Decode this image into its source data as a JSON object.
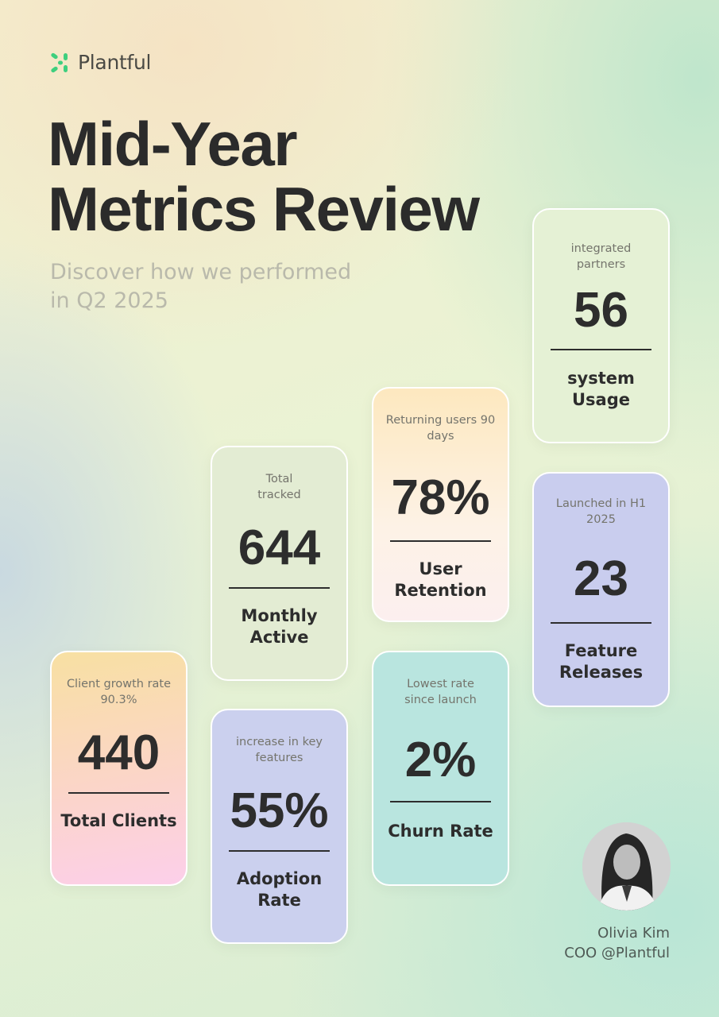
{
  "brand": {
    "name": "Plantful",
    "accent": "#3ecf7e"
  },
  "header": {
    "title_line1": "Mid-Year",
    "title_line2": "Metrics Review",
    "subtitle_line1": "Discover how we performed",
    "subtitle_line2": "in Q2 2025"
  },
  "cards": [
    {
      "caption": "Client growth rate 90.3%",
      "value": "440",
      "label": "Total Clients"
    },
    {
      "caption": "Total tracked",
      "value": "644",
      "label": "Monthly Active"
    },
    {
      "caption": "increase in key features",
      "value": "55%",
      "label": "Adoption Rate"
    },
    {
      "caption": "Returning users 90 days",
      "value": "78%",
      "label": "User Retention"
    },
    {
      "caption": "Lowest rate since launch",
      "value": "2%",
      "label": "Churn Rate"
    },
    {
      "caption": "integrated partners",
      "value": "56",
      "label": "system Usage"
    },
    {
      "caption": "Launched in H1 2025",
      "value": "23",
      "label": "Feature Releases"
    }
  ],
  "author": {
    "name": "Olivia Kim",
    "role": "COO @Plantful"
  }
}
